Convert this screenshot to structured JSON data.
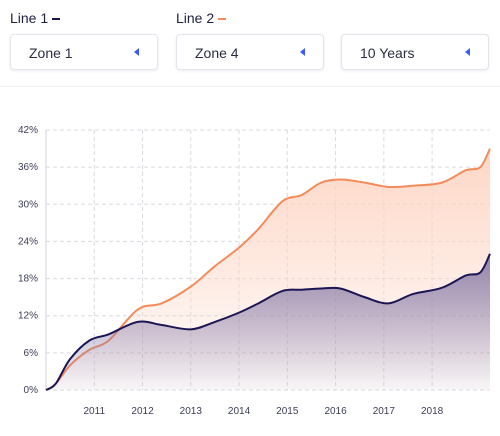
{
  "legend": {
    "line1": {
      "label": "Line 1",
      "color": "#1c1654"
    },
    "line2": {
      "label": "Line 2",
      "color": "#f48b5a"
    }
  },
  "selects": [
    {
      "value": "Zone 1",
      "icon": "caret-left-icon"
    },
    {
      "value": "Zone 4",
      "icon": "caret-left-icon"
    },
    {
      "value": "10 Years",
      "icon": "caret-left-icon"
    }
  ],
  "chart_data": {
    "type": "area",
    "x_ticks": [
      "2011",
      "2012",
      "2013",
      "2014",
      "2015",
      "2016",
      "2017",
      "2018"
    ],
    "y_ticks": [
      "0%",
      "6%",
      "12%",
      "18%",
      "24%",
      "30%",
      "36%",
      "42%"
    ],
    "ylim": [
      0,
      42
    ],
    "xlim": [
      2010,
      2019.2
    ],
    "grid": true,
    "series": [
      {
        "name": "Line 2",
        "color": "#f48b5a",
        "fill": "#fdd5c3",
        "x": [
          2010,
          2010.2,
          2010.5,
          2010.9,
          2011.3,
          2011.9,
          2012.4,
          2013,
          2013.5,
          2014,
          2014.4,
          2014.9,
          2015.3,
          2015.7,
          2016.1,
          2016.6,
          2017.1,
          2017.6,
          2018.2,
          2018.7,
          2019,
          2019.2
        ],
        "values": [
          0,
          1,
          4,
          6.5,
          8,
          13,
          14,
          16.7,
          20,
          23,
          26,
          30.5,
          31.5,
          33.5,
          34,
          33.5,
          32.8,
          33,
          33.5,
          35.5,
          36,
          39
        ]
      },
      {
        "name": "Line 1",
        "color": "#1c1654",
        "fill": "#8d7fa9",
        "x": [
          2010,
          2010.2,
          2010.5,
          2010.9,
          2011.3,
          2011.9,
          2012.4,
          2013,
          2013.5,
          2014,
          2014.4,
          2014.9,
          2015.3,
          2015.7,
          2016.1,
          2016.6,
          2017.1,
          2017.6,
          2018.2,
          2018.7,
          2019,
          2019.2
        ],
        "values": [
          0,
          1,
          5,
          8,
          9,
          11,
          10.5,
          9.8,
          11,
          12.5,
          14,
          16,
          16.2,
          16.4,
          16.4,
          15,
          14,
          15.5,
          16.5,
          18.5,
          19,
          22
        ]
      }
    ]
  }
}
